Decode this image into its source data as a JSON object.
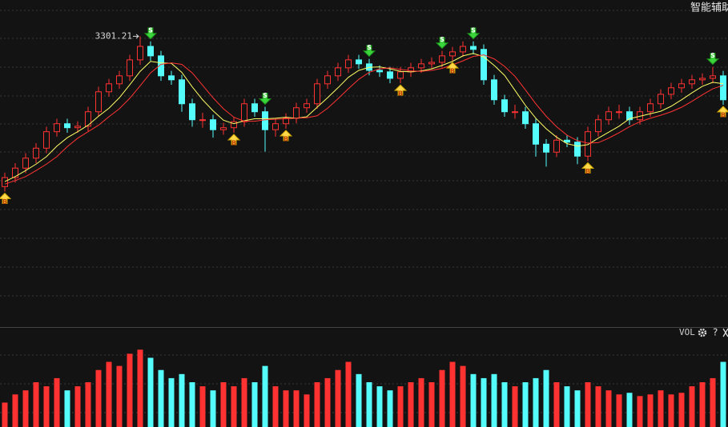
{
  "chart_data": {
    "type": "candlestick",
    "title": "智能辅助",
    "volume_label": "VOL",
    "up_color": "#ff3232",
    "down_color": "#54fcfc",
    "ylim": [
      2720,
      3374
    ],
    "volume_ylim": [
      0,
      110
    ],
    "open": [
      3000,
      3018,
      3037,
      3057,
      3077,
      3110,
      3126,
      3118,
      3121,
      3150,
      3190,
      3206,
      3222,
      3254,
      3281,
      3262,
      3222,
      3214,
      3166,
      3134,
      3134,
      3114,
      3118,
      3130,
      3166,
      3150,
      3114,
      3126,
      3137,
      3158,
      3166,
      3206,
      3222,
      3238,
      3254,
      3246,
      3233,
      3230,
      3217,
      3230,
      3238,
      3246,
      3249,
      3262,
      3270,
      3281,
      3275,
      3214,
      3174,
      3150,
      3150,
      3126,
      3085,
      3069,
      3093,
      3089,
      3061,
      3110,
      3134,
      3150,
      3150,
      3134,
      3150,
      3166,
      3185,
      3198,
      3206,
      3214,
      3217,
      3222
    ],
    "high": [
      3028,
      3047,
      3067,
      3087,
      3120,
      3136,
      3136,
      3131,
      3160,
      3200,
      3216,
      3232,
      3264,
      3301.21,
      3291,
      3272,
      3232,
      3224,
      3176,
      3148,
      3144,
      3128,
      3140,
      3176,
      3176,
      3160,
      3136,
      3147,
      3168,
      3176,
      3216,
      3232,
      3248,
      3264,
      3264,
      3256,
      3243,
      3240,
      3240,
      3248,
      3256,
      3259,
      3272,
      3280,
      3291,
      3291,
      3285,
      3224,
      3184,
      3164,
      3160,
      3136,
      3095,
      3103,
      3103,
      3099,
      3120,
      3144,
      3160,
      3164,
      3160,
      3160,
      3176,
      3195,
      3208,
      3216,
      3224,
      3227,
      3240,
      3232
    ],
    "low": [
      2990,
      3008,
      3027,
      3047,
      3067,
      3100,
      3108,
      3108,
      3111,
      3140,
      3180,
      3196,
      3212,
      3244,
      3252,
      3212,
      3204,
      3150,
      3120,
      3118,
      3098,
      3104,
      3108,
      3120,
      3140,
      3070,
      3100,
      3116,
      3127,
      3148,
      3156,
      3196,
      3212,
      3228,
      3236,
      3223,
      3220,
      3207,
      3207,
      3220,
      3228,
      3236,
      3239,
      3252,
      3260,
      3265,
      3204,
      3164,
      3140,
      3136,
      3116,
      3060,
      3040,
      3059,
      3079,
      3045,
      3051,
      3100,
      3124,
      3136,
      3124,
      3124,
      3140,
      3156,
      3175,
      3188,
      3196,
      3204,
      3207,
      3164
    ],
    "close": [
      3018,
      3037,
      3057,
      3077,
      3110,
      3126,
      3118,
      3121,
      3150,
      3190,
      3206,
      3222,
      3254,
      3281,
      3262,
      3222,
      3214,
      3166,
      3134,
      3134,
      3114,
      3118,
      3130,
      3166,
      3150,
      3114,
      3126,
      3137,
      3158,
      3166,
      3206,
      3222,
      3238,
      3254,
      3246,
      3233,
      3230,
      3217,
      3230,
      3238,
      3246,
      3249,
      3262,
      3270,
      3281,
      3275,
      3214,
      3174,
      3150,
      3150,
      3126,
      3085,
      3069,
      3093,
      3089,
      3061,
      3110,
      3134,
      3150,
      3150,
      3134,
      3150,
      3166,
      3185,
      3198,
      3206,
      3214,
      3217,
      3222,
      3174
    ],
    "volume": [
      30,
      40,
      45,
      55,
      50,
      60,
      45,
      50,
      55,
      70,
      80,
      75,
      90,
      95,
      85,
      70,
      60,
      65,
      55,
      50,
      45,
      55,
      50,
      60,
      55,
      75,
      50,
      45,
      45,
      40,
      55,
      60,
      70,
      80,
      65,
      55,
      50,
      45,
      50,
      55,
      60,
      55,
      70,
      80,
      75,
      65,
      60,
      65,
      55,
      50,
      55,
      60,
      70,
      55,
      50,
      45,
      55,
      50,
      45,
      40,
      42,
      38,
      40,
      45,
      40,
      42,
      50,
      55,
      60,
      80
    ],
    "ma": [
      {
        "color": "#ffff66",
        "values": [
          3010,
          3020,
          3032,
          3045,
          3060,
          3081,
          3098,
          3110,
          3123,
          3141,
          3157,
          3178,
          3204,
          3231,
          3251,
          3248,
          3247,
          3229,
          3200,
          3174,
          3152,
          3133,
          3126,
          3132,
          3136,
          3136,
          3137,
          3139,
          3137,
          3140,
          3159,
          3178,
          3198,
          3219,
          3233,
          3239,
          3240,
          3236,
          3231,
          3230,
          3232,
          3236,
          3243,
          3251,
          3262,
          3267,
          3260,
          3243,
          3223,
          3193,
          3163,
          3137,
          3116,
          3099,
          3086,
          3081,
          3084,
          3097,
          3109,
          3121,
          3136,
          3141,
          3146,
          3151,
          3161,
          3174,
          3188,
          3201,
          3209,
          3206
        ]
      },
      {
        "color": "#ff3333",
        "values": [
          3005,
          3012,
          3020,
          3032,
          3045,
          3060,
          3080,
          3097,
          3110,
          3123,
          3140,
          3156,
          3177,
          3202,
          3228,
          3245,
          3248,
          3245,
          3228,
          3203,
          3178,
          3156,
          3139,
          3131,
          3131,
          3134,
          3135,
          3136,
          3137,
          3138,
          3142,
          3157,
          3176,
          3196,
          3215,
          3229,
          3236,
          3238,
          3235,
          3232,
          3231,
          3233,
          3237,
          3244,
          3252,
          3261,
          3264,
          3256,
          3241,
          3221,
          3194,
          3166,
          3141,
          3120,
          3103,
          3092,
          3087,
          3088,
          3097,
          3108,
          3120,
          3130,
          3137,
          3143,
          3150,
          3159,
          3171,
          3184,
          3196,
          3203
        ]
      }
    ],
    "signals": [
      {
        "index": 0,
        "label": "B"
      },
      {
        "index": 14,
        "label": "S"
      },
      {
        "index": 22,
        "label": "B"
      },
      {
        "index": 25,
        "label": "S"
      },
      {
        "index": 27,
        "label": "B"
      },
      {
        "index": 35,
        "label": "S"
      },
      {
        "index": 38,
        "label": "B"
      },
      {
        "index": 42,
        "label": "S"
      },
      {
        "index": 43,
        "label": "B"
      },
      {
        "index": 45,
        "label": "S"
      },
      {
        "index": 56,
        "label": "B"
      },
      {
        "index": 68,
        "label": "S"
      },
      {
        "index": 69,
        "label": "B"
      }
    ],
    "peak_index": 13
  }
}
